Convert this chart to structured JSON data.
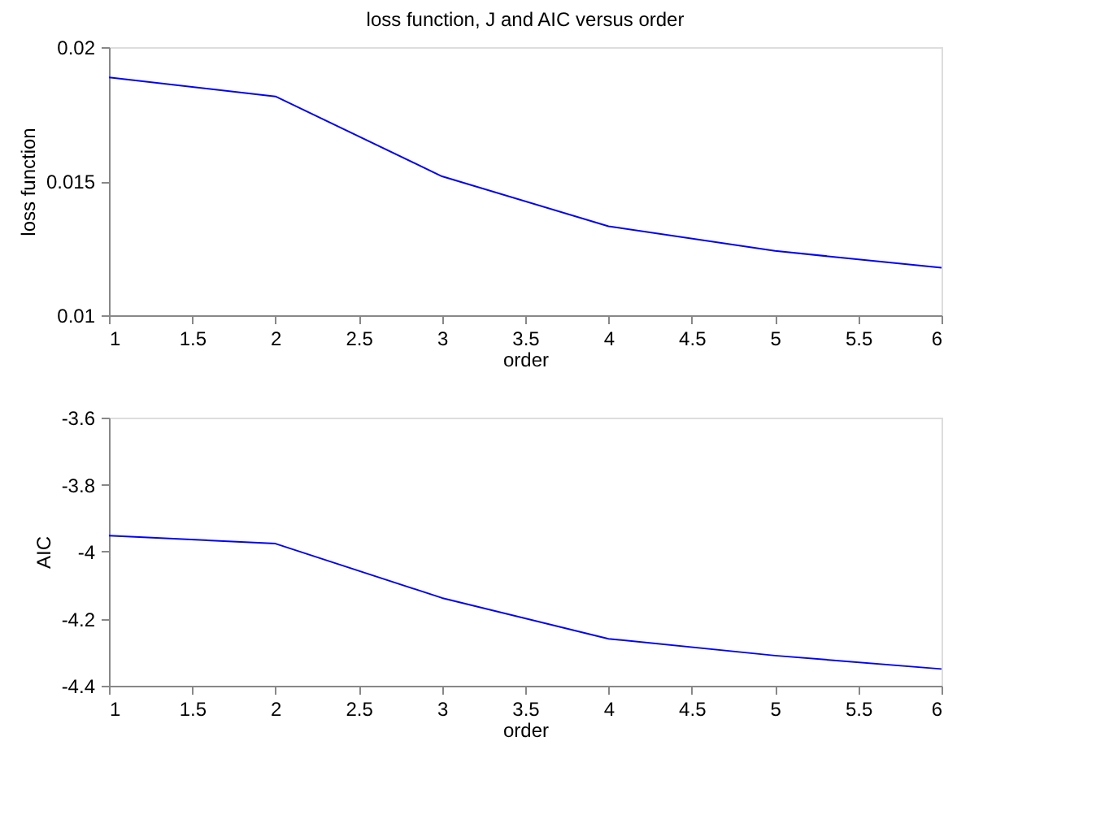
{
  "chart_data": [
    {
      "type": "line",
      "title": "loss function, J and AIC versus order",
      "xlabel": "order",
      "ylabel": "loss function",
      "x": [
        1,
        2,
        3,
        4,
        5,
        6
      ],
      "series": [
        {
          "color": "#0000ff",
          "values": [
            0.01887,
            0.01816,
            0.01518,
            0.01332,
            0.0124,
            0.01177
          ]
        }
      ],
      "xlim": [
        1,
        6
      ],
      "xticks": [
        1,
        1.5,
        2,
        2.5,
        3,
        3.5,
        4,
        4.5,
        5,
        5.5,
        6
      ],
      "ylim": [
        0.01,
        0.02
      ],
      "yticks": [
        0.01,
        0.015,
        0.02
      ],
      "grid": false,
      "legend": false
    },
    {
      "type": "line",
      "xlabel": "order",
      "ylabel": "AIC",
      "x": [
        1,
        2,
        3,
        4,
        5,
        6
      ],
      "series": [
        {
          "color": "#0000ff",
          "values": [
            -3.952,
            -3.976,
            -4.138,
            -4.26,
            -4.31,
            -4.35
          ]
        }
      ],
      "xlim": [
        1,
        6
      ],
      "xticks": [
        1,
        1.5,
        2,
        2.5,
        3,
        3.5,
        4,
        4.5,
        5,
        5.5,
        6
      ],
      "ylim": [
        -4.4,
        -3.6
      ],
      "yticks": [
        -4.4,
        -4.2,
        -4,
        -3.8,
        -3.6
      ],
      "grid": false,
      "legend": false
    }
  ]
}
